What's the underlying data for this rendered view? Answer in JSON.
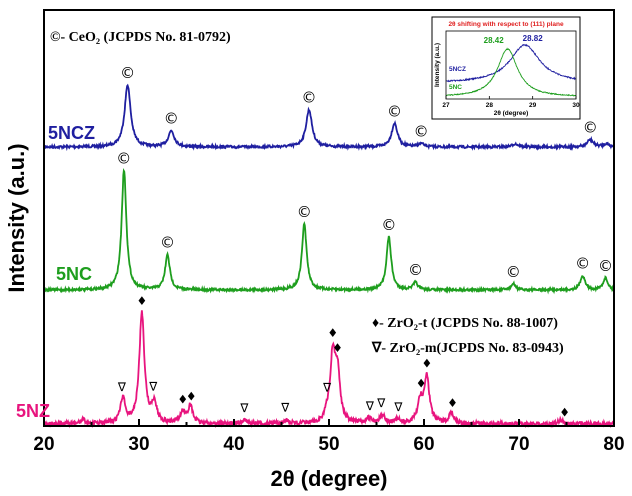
{
  "chart_data": {
    "type": "line",
    "xlabel": "2θ (degree)",
    "ylabel": "Intensity (a.u.)",
    "xlim": [
      20,
      80
    ],
    "x_ticks": [
      "20",
      "30",
      "40",
      "50",
      "60",
      "70",
      "80"
    ],
    "grid": false,
    "series": [
      {
        "name": "5NCZ",
        "color": "#1f1fa0",
        "peaks": [
          {
            "x": 28.8,
            "height": 1.0
          },
          {
            "x": 33.4,
            "height": 0.26
          },
          {
            "x": 47.9,
            "height": 0.6
          },
          {
            "x": 56.9,
            "height": 0.38
          },
          {
            "x": 59.7,
            "height": 0.05
          },
          {
            "x": 69.6,
            "height": 0.05
          },
          {
            "x": 77.5,
            "height": 0.12
          },
          {
            "x": 79.2,
            "height": 0.05
          }
        ]
      },
      {
        "name": "5NC",
        "color": "#1e9e1e",
        "peaks": [
          {
            "x": 28.42,
            "height": 1.0
          },
          {
            "x": 33.0,
            "height": 0.29
          },
          {
            "x": 47.4,
            "height": 0.55
          },
          {
            "x": 56.3,
            "height": 0.44
          },
          {
            "x": 59.1,
            "height": 0.06
          },
          {
            "x": 69.4,
            "height": 0.05
          },
          {
            "x": 76.7,
            "height": 0.12
          },
          {
            "x": 79.1,
            "height": 0.1
          }
        ]
      },
      {
        "name": "5NZ",
        "color": "#e8147e",
        "peaks": [
          {
            "x": 24.1,
            "height": 0.03
          },
          {
            "x": 28.3,
            "height": 0.2
          },
          {
            "x": 30.3,
            "height": 0.91
          },
          {
            "x": 31.6,
            "height": 0.16
          },
          {
            "x": 34.6,
            "height": 0.09
          },
          {
            "x": 35.4,
            "height": 0.14
          },
          {
            "x": 41.1,
            "height": 0.03
          },
          {
            "x": 45.4,
            "height": 0.03
          },
          {
            "x": 49.8,
            "height": 0.05
          },
          {
            "x": 50.4,
            "height": 0.54
          },
          {
            "x": 50.9,
            "height": 0.38
          },
          {
            "x": 54.2,
            "height": 0.04
          },
          {
            "x": 55.6,
            "height": 0.07
          },
          {
            "x": 57.2,
            "height": 0.03
          },
          {
            "x": 59.6,
            "height": 0.18
          },
          {
            "x": 60.3,
            "height": 0.38
          },
          {
            "x": 62.9,
            "height": 0.09
          },
          {
            "x": 74.4,
            "height": 0.03
          }
        ]
      }
    ],
    "annotations": {
      "ceo2_legend": "©- CeO₂ (JCPDS No. 81-0792)",
      "zro2_t_legend": "♦- ZrO₂-t (JCPDS No. 88-1007)",
      "zro2_m_legend": "∇- ZrO₂-m(JCPDS No. 83-0943)",
      "ceo2_marker": "©",
      "zro2_t_marker": "♦",
      "zro2_m_marker": "∇",
      "ceo2_positions_5NCZ": [
        28.8,
        33.4,
        47.9,
        56.9,
        59.7,
        77.5
      ],
      "ceo2_positions_5NC": [
        28.4,
        33.0,
        47.4,
        56.3,
        59.1,
        69.4,
        76.7,
        79.1
      ],
      "zro2_t_positions": [
        30.3,
        34.6,
        35.5,
        50.4,
        50.9,
        59.7,
        60.3,
        63.0,
        74.8
      ],
      "zro2_m_positions": [
        28.2,
        31.5,
        41.1,
        45.4,
        49.8,
        54.3,
        55.5,
        57.3
      ]
    },
    "inset": {
      "title": "2θ shifting with respect to (111) plane",
      "xlabel": "2θ (degree)",
      "ylabel": "Intensity (a.u.)",
      "xlim": [
        27,
        30
      ],
      "x_ticks": [
        "27",
        "28",
        "29",
        "30"
      ],
      "peak_labels": [
        {
          "series": "5NC",
          "x": 28.42,
          "label": "28.42"
        },
        {
          "series": "5NCZ",
          "x": 28.82,
          "label": "28.82"
        }
      ],
      "series_labels": [
        "5NCZ",
        "5NC"
      ]
    }
  }
}
